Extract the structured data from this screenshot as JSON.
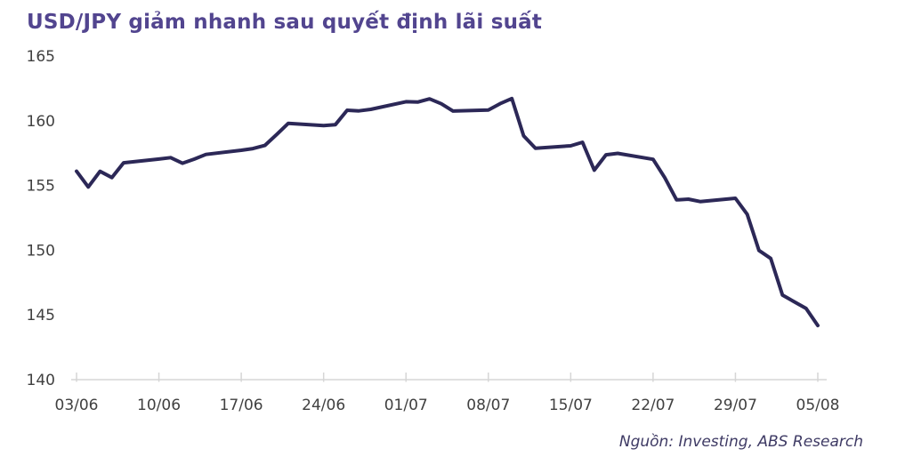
{
  "source_note": "Nguồn: Investing, ABS Research",
  "colors": {
    "line": "#2c2857",
    "title": "#52458f",
    "axis_text": "#404040",
    "axis_line": "#d6d6d6",
    "source_text": "#3e3a64",
    "background": "#ffffff"
  },
  "chart_data": {
    "type": "line",
    "title": "USD/JPY giảm nhanh sau quyết định lãi suất",
    "series_name": "USD/JPY",
    "xlabel": "",
    "ylabel": "",
    "ylim": [
      140,
      165
    ],
    "y_ticks": [
      140,
      145,
      150,
      155,
      160,
      165
    ],
    "x_tick_labels": [
      "03/06",
      "10/06",
      "17/06",
      "24/06",
      "01/07",
      "08/07",
      "15/07",
      "22/07",
      "29/07",
      "05/08"
    ],
    "grid": false,
    "legend": false,
    "x": [
      "03/06",
      "04/06",
      "05/06",
      "06/06",
      "07/06",
      "10/06",
      "11/06",
      "12/06",
      "13/06",
      "14/06",
      "17/06",
      "18/06",
      "19/06",
      "20/06",
      "21/06",
      "24/06",
      "25/06",
      "26/06",
      "27/06",
      "28/06",
      "01/07",
      "02/07",
      "03/07",
      "04/07",
      "05/07",
      "08/07",
      "09/07",
      "10/07",
      "11/07",
      "12/07",
      "15/07",
      "16/07",
      "17/07",
      "18/07",
      "19/07",
      "22/07",
      "23/07",
      "24/07",
      "25/07",
      "26/07",
      "29/07",
      "30/07",
      "31/07",
      "01/08",
      "02/08",
      "04/08",
      "05/08"
    ],
    "values": [
      156.1,
      154.88,
      156.09,
      155.61,
      156.75,
      157.04,
      157.15,
      156.72,
      157.03,
      157.4,
      157.72,
      157.85,
      158.09,
      158.93,
      159.8,
      159.62,
      159.7,
      160.81,
      160.76,
      160.88,
      161.47,
      161.44,
      161.69,
      161.31,
      160.75,
      160.83,
      161.32,
      161.72,
      158.84,
      157.88,
      158.06,
      158.34,
      156.18,
      157.37,
      157.48,
      157.02,
      155.6,
      153.89,
      153.94,
      153.76,
      154.01,
      152.77,
      149.98,
      149.36,
      146.53,
      145.5,
      144.18
    ]
  }
}
